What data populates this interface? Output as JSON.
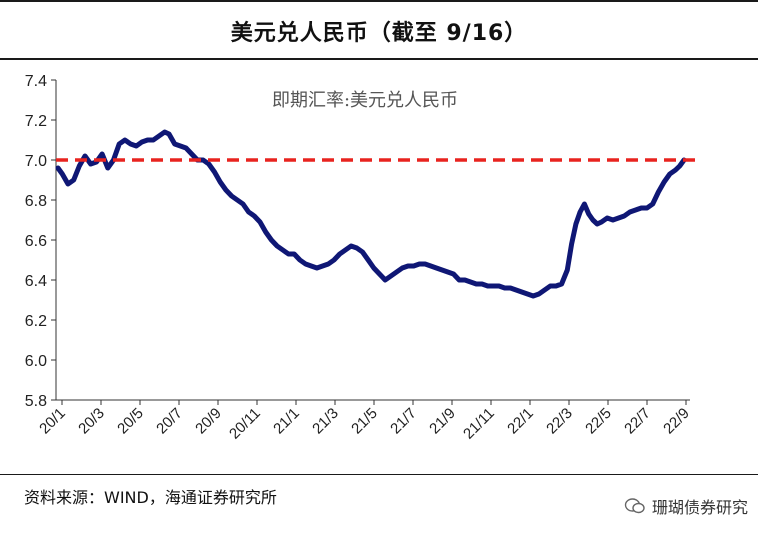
{
  "title": "美元兑人民币（截至 9/16）",
  "source": "资料来源：WIND，海通证券研究所",
  "watermark": "珊瑚债券研究",
  "chart_data": {
    "type": "line",
    "title": "美元兑人民币（截至 9/16）",
    "annotation": "即期汇率:美元兑人民币",
    "ylim": [
      5.8,
      7.4
    ],
    "yticks": [
      "5.8",
      "6.0",
      "6.2",
      "6.4",
      "6.6",
      "6.8",
      "7.0",
      "7.2",
      "7.4"
    ],
    "xticks": [
      "20/1",
      "20/3",
      "20/5",
      "20/7",
      "20/9",
      "20/11",
      "21/1",
      "21/3",
      "21/5",
      "21/7",
      "21/9",
      "21/11",
      "22/1",
      "22/3",
      "22/5",
      "22/7",
      "22/9"
    ],
    "reference_line": {
      "value": 7.0,
      "style": "dashed",
      "color": "#e8231f"
    },
    "series": [
      {
        "name": "即期汇率:美元兑人民币",
        "color": "#0f1775",
        "points": [
          [
            0.0,
            6.96
          ],
          [
            0.15,
            6.93
          ],
          [
            0.35,
            6.88
          ],
          [
            0.55,
            6.9
          ],
          [
            0.75,
            6.97
          ],
          [
            0.95,
            7.02
          ],
          [
            1.15,
            6.98
          ],
          [
            1.35,
            6.99
          ],
          [
            1.55,
            7.03
          ],
          [
            1.75,
            6.96
          ],
          [
            1.95,
            7.0
          ],
          [
            2.15,
            7.08
          ],
          [
            2.35,
            7.1
          ],
          [
            2.55,
            7.08
          ],
          [
            2.75,
            7.07
          ],
          [
            2.95,
            7.09
          ],
          [
            3.15,
            7.1
          ],
          [
            3.35,
            7.1
          ],
          [
            3.55,
            7.12
          ],
          [
            3.75,
            7.14
          ],
          [
            3.9,
            7.13
          ],
          [
            4.1,
            7.08
          ],
          [
            4.3,
            7.07
          ],
          [
            4.5,
            7.06
          ],
          [
            4.7,
            7.03
          ],
          [
            4.9,
            7.0
          ],
          [
            5.1,
            7.0
          ],
          [
            5.3,
            6.98
          ],
          [
            5.5,
            6.94
          ],
          [
            5.7,
            6.89
          ],
          [
            5.9,
            6.85
          ],
          [
            6.1,
            6.82
          ],
          [
            6.3,
            6.8
          ],
          [
            6.5,
            6.78
          ],
          [
            6.7,
            6.74
          ],
          [
            6.9,
            6.72
          ],
          [
            7.1,
            6.69
          ],
          [
            7.3,
            6.64
          ],
          [
            7.5,
            6.6
          ],
          [
            7.7,
            6.57
          ],
          [
            7.9,
            6.55
          ],
          [
            8.1,
            6.53
          ],
          [
            8.3,
            6.53
          ],
          [
            8.5,
            6.5
          ],
          [
            8.7,
            6.48
          ],
          [
            8.9,
            6.47
          ],
          [
            9.1,
            6.46
          ],
          [
            9.3,
            6.47
          ],
          [
            9.5,
            6.48
          ],
          [
            9.7,
            6.5
          ],
          [
            9.9,
            6.53
          ],
          [
            10.1,
            6.55
          ],
          [
            10.3,
            6.57
          ],
          [
            10.5,
            6.56
          ],
          [
            10.7,
            6.54
          ],
          [
            10.9,
            6.5
          ],
          [
            11.1,
            6.46
          ],
          [
            11.3,
            6.43
          ],
          [
            11.5,
            6.4
          ],
          [
            11.7,
            6.42
          ],
          [
            11.9,
            6.44
          ],
          [
            12.1,
            6.46
          ],
          [
            12.3,
            6.47
          ],
          [
            12.5,
            6.47
          ],
          [
            12.7,
            6.48
          ],
          [
            12.9,
            6.48
          ],
          [
            13.1,
            6.47
          ],
          [
            13.3,
            6.46
          ],
          [
            13.5,
            6.45
          ],
          [
            13.7,
            6.44
          ],
          [
            13.9,
            6.43
          ],
          [
            14.1,
            6.4
          ],
          [
            14.3,
            6.4
          ],
          [
            14.5,
            6.39
          ],
          [
            14.7,
            6.38
          ],
          [
            14.9,
            6.38
          ],
          [
            15.1,
            6.37
          ],
          [
            15.3,
            6.37
          ],
          [
            15.5,
            6.37
          ],
          [
            15.7,
            6.36
          ],
          [
            15.9,
            6.36
          ],
          [
            16.1,
            6.35
          ],
          [
            16.3,
            6.34
          ],
          [
            16.5,
            6.33
          ],
          [
            16.7,
            6.32
          ],
          [
            16.9,
            6.33
          ],
          [
            17.1,
            6.35
          ],
          [
            17.3,
            6.37
          ],
          [
            17.5,
            6.37
          ],
          [
            17.7,
            6.38
          ],
          [
            17.9,
            6.45
          ],
          [
            18.05,
            6.58
          ],
          [
            18.2,
            6.68
          ],
          [
            18.35,
            6.74
          ],
          [
            18.5,
            6.78
          ],
          [
            18.65,
            6.73
          ],
          [
            18.8,
            6.7
          ],
          [
            18.95,
            6.68
          ],
          [
            19.1,
            6.69
          ],
          [
            19.3,
            6.71
          ],
          [
            19.5,
            6.7
          ],
          [
            19.7,
            6.71
          ],
          [
            19.9,
            6.72
          ],
          [
            20.1,
            6.74
          ],
          [
            20.3,
            6.75
          ],
          [
            20.5,
            6.76
          ],
          [
            20.7,
            6.76
          ],
          [
            20.9,
            6.78
          ],
          [
            21.1,
            6.84
          ],
          [
            21.3,
            6.89
          ],
          [
            21.5,
            6.93
          ],
          [
            21.7,
            6.95
          ],
          [
            21.85,
            6.97
          ],
          [
            22.0,
            7.0
          ]
        ]
      }
    ]
  }
}
